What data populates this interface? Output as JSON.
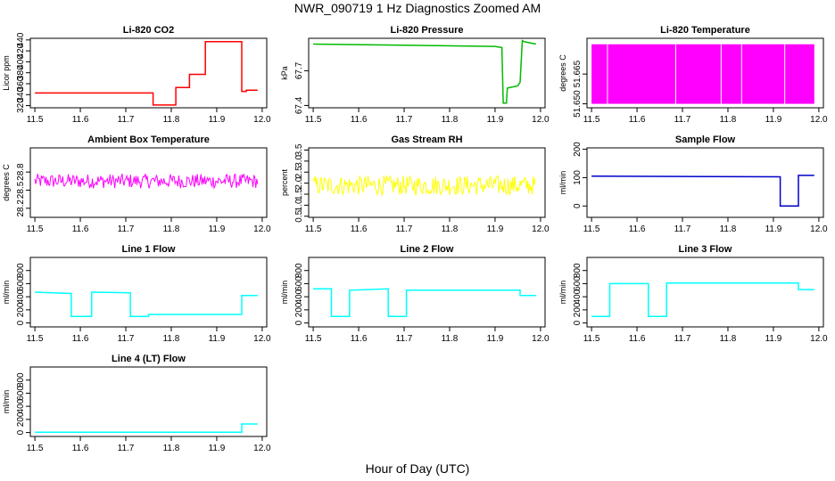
{
  "title": "NWR_090719  1 Hz Diagnostics Zoomed AM",
  "xlabel": "Hour of Day (UTC)",
  "chart_data": [
    {
      "type": "line",
      "title": "Li-820 CO2",
      "ylabel": "Licor ppm",
      "color": "#ff0000",
      "x_ticks": [
        "11.5",
        "11.6",
        "11.7",
        "11.8",
        "11.9",
        "12.0"
      ],
      "y_ticks": [
        "320",
        "340",
        "360",
        "380",
        "400",
        "420",
        "440"
      ],
      "x_range": [
        11.49,
        12.01
      ],
      "y_range": [
        316,
        443
      ],
      "series": [
        {
          "x": [
            11.5,
            11.76,
            11.76,
            11.81,
            11.81,
            11.84,
            11.84,
            11.875,
            11.875,
            11.955,
            11.955,
            11.965,
            11.965,
            11.99
          ],
          "y": [
            343,
            343,
            321,
            321,
            353,
            353,
            377,
            377,
            437,
            437,
            346,
            346,
            348,
            348
          ]
        }
      ]
    },
    {
      "type": "line",
      "title": "Li-820 Pressure",
      "ylabel": "kPa",
      "color": "#00bb00",
      "x_ticks": [
        "11.5",
        "11.6",
        "11.7",
        "11.8",
        "11.9",
        "12.0"
      ],
      "y_ticks": [
        "67.4",
        "67.7"
      ],
      "x_range": [
        11.49,
        12.01
      ],
      "y_range": [
        67.38,
        67.98
      ],
      "series": [
        {
          "x": [
            11.5,
            11.7,
            11.9,
            11.915,
            11.918,
            11.925,
            11.927,
            11.95,
            11.955,
            11.96,
            11.965,
            11.99
          ],
          "y": [
            67.93,
            67.92,
            67.91,
            67.9,
            67.42,
            67.42,
            67.55,
            67.57,
            67.6,
            67.96,
            67.95,
            67.93
          ]
        }
      ]
    },
    {
      "type": "area",
      "title": "Li-820 Temperature",
      "ylabel": "degrees C",
      "color": "#ff00ff",
      "x_ticks": [
        "11.5",
        "11.6",
        "11.7",
        "11.8",
        "11.9",
        "12.0"
      ],
      "y_ticks": [
        "51.650",
        "51.665"
      ],
      "x_range": [
        11.49,
        12.01
      ],
      "y_range": [
        51.648,
        51.683
      ],
      "series": [
        {
          "x": [
            11.5,
            11.99
          ],
          "y": [
            51.65,
            51.68
          ]
        }
      ]
    },
    {
      "type": "line",
      "title": "Ambient Box Temperature",
      "ylabel": "degrees C",
      "color": "#ff00ff",
      "x_ticks": [
        "11.5",
        "11.6",
        "11.7",
        "11.8",
        "11.9",
        "12.0"
      ],
      "y_ticks": [
        "28.2",
        "28.5",
        "28.8"
      ],
      "x_range": [
        11.49,
        12.01
      ],
      "y_range": [
        28.05,
        29.2
      ],
      "series": [
        {
          "x": [
            11.5,
            11.99
          ],
          "y": [
            28.65,
            28.65
          ],
          "noise": 0.12
        }
      ]
    },
    {
      "type": "line",
      "title": "Gas Stream RH",
      "ylabel": "percent",
      "color": "#ffff00",
      "x_ticks": [
        "11.5",
        "11.6",
        "11.7",
        "11.8",
        "11.9",
        "12.0"
      ],
      "y_ticks": [
        "0.5",
        "1.0",
        "1.5",
        "2.0",
        "2.5",
        "3.0",
        "3.5"
      ],
      "x_range": [
        11.49,
        12.01
      ],
      "y_range": [
        0.45,
        3.6
      ],
      "series": [
        {
          "x": [
            11.5,
            11.99
          ],
          "y": [
            1.9,
            1.9
          ],
          "noise": 0.45
        }
      ]
    },
    {
      "type": "line",
      "title": "Sample Flow",
      "ylabel": "ml/min",
      "color": "#0000cc",
      "x_ticks": [
        "11.5",
        "11.6",
        "11.7",
        "11.8",
        "11.9",
        "12.0"
      ],
      "y_ticks": [
        "0",
        "100",
        "200"
      ],
      "x_range": [
        11.49,
        12.01
      ],
      "y_range": [
        -40,
        205
      ],
      "series": [
        {
          "x": [
            11.5,
            11.915,
            11.915,
            11.955,
            11.955,
            11.99
          ],
          "y": [
            105,
            103,
            0,
            0,
            108,
            108
          ]
        }
      ]
    },
    {
      "type": "line",
      "title": "Line 1 Flow",
      "ylabel": "ml/min",
      "color": "#00ffff",
      "x_ticks": [
        "11.5",
        "11.6",
        "11.7",
        "11.8",
        "11.9",
        "12.0"
      ],
      "y_ticks": [
        "0",
        "200",
        "400",
        "600",
        "800"
      ],
      "x_range": [
        11.49,
        12.01
      ],
      "y_range": [
        -60,
        1000
      ],
      "series": [
        {
          "x": [
            11.5,
            11.58,
            11.58,
            11.625,
            11.625,
            11.71,
            11.71,
            11.75,
            11.75,
            11.955,
            11.955,
            11.99
          ],
          "y": [
            470,
            450,
            100,
            100,
            470,
            460,
            100,
            100,
            130,
            130,
            420,
            420
          ]
        }
      ]
    },
    {
      "type": "line",
      "title": "Line 2 Flow",
      "ylabel": "ml/min",
      "color": "#00ffff",
      "x_ticks": [
        "11.5",
        "11.6",
        "11.7",
        "11.8",
        "11.9",
        "12.0"
      ],
      "y_ticks": [
        "0",
        "200",
        "400",
        "600",
        "800"
      ],
      "x_range": [
        11.49,
        12.01
      ],
      "y_range": [
        -60,
        1000
      ],
      "series": [
        {
          "x": [
            11.5,
            11.54,
            11.54,
            11.58,
            11.58,
            11.665,
            11.665,
            11.705,
            11.705,
            11.955,
            11.955,
            11.99
          ],
          "y": [
            520,
            520,
            100,
            100,
            500,
            520,
            100,
            100,
            500,
            500,
            420,
            420
          ]
        }
      ]
    },
    {
      "type": "line",
      "title": "Line 3 Flow",
      "ylabel": "ml/min",
      "color": "#00ffff",
      "x_ticks": [
        "11.5",
        "11.6",
        "11.7",
        "11.8",
        "11.9",
        "12.0"
      ],
      "y_ticks": [
        "0",
        "200",
        "400",
        "600",
        "800"
      ],
      "x_range": [
        11.49,
        12.01
      ],
      "y_range": [
        -60,
        1000
      ],
      "series": [
        {
          "x": [
            11.5,
            11.54,
            11.54,
            11.625,
            11.625,
            11.665,
            11.665,
            11.955,
            11.955,
            11.99
          ],
          "y": [
            100,
            100,
            600,
            600,
            100,
            100,
            610,
            610,
            510,
            510
          ]
        }
      ]
    },
    {
      "type": "line",
      "title": "Line 4 (LT) Flow",
      "ylabel": "ml/min",
      "color": "#00ffff",
      "x_ticks": [
        "11.5",
        "11.6",
        "11.7",
        "11.8",
        "11.9",
        "12.0"
      ],
      "y_ticks": [
        "0",
        "200",
        "400",
        "600",
        "800"
      ],
      "x_range": [
        11.49,
        12.01
      ],
      "y_range": [
        -60,
        1000
      ],
      "series": [
        {
          "x": [
            11.5,
            11.955,
            11.955,
            11.99
          ],
          "y": [
            5,
            5,
            130,
            130
          ]
        }
      ]
    }
  ]
}
